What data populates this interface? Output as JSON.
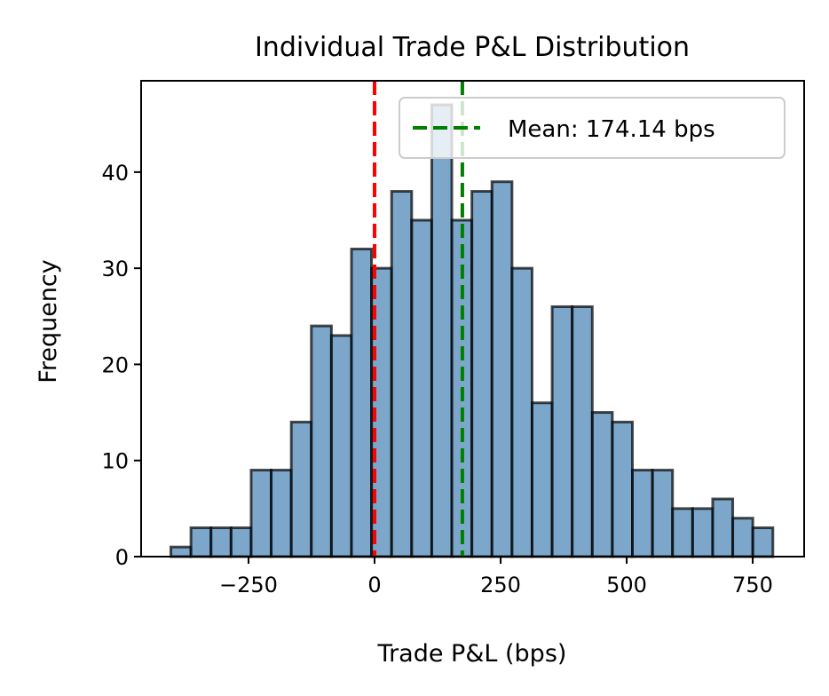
{
  "chart_data": {
    "type": "bar",
    "title": "Individual Trade P&L Distribution",
    "xlabel": "Trade P&L (bps)",
    "ylabel": "Frequency",
    "xlim": [
      -463,
      852
    ],
    "ylim": [
      0,
      49.5
    ],
    "x_ticks": [
      -250,
      0,
      250,
      500,
      750
    ],
    "x_tick_labels": [
      "−250",
      "0",
      "250",
      "500",
      "750"
    ],
    "y_ticks": [
      0,
      10,
      20,
      30,
      40
    ],
    "y_tick_labels": [
      "0",
      "10",
      "20",
      "30",
      "40"
    ],
    "bin_start": -404,
    "bin_width": 39.8,
    "values": [
      1,
      3,
      3,
      3,
      9,
      9,
      14,
      24,
      23,
      32,
      30,
      38,
      35,
      47,
      35,
      38,
      39,
      30,
      16,
      26,
      26,
      15,
      14,
      9,
      9,
      5,
      5,
      6,
      4,
      3
    ],
    "bar_color": "#4682b4",
    "bar_edge_color": "#000000",
    "grid": false,
    "reference_lines": [
      {
        "x": 0,
        "color": "#ff0000",
        "style": "dashed"
      },
      {
        "x": 174.14,
        "color": "#008000",
        "style": "dashed",
        "name": "Mean: 174.14 bps"
      }
    ],
    "legend": {
      "position": "top-right",
      "entries": [
        "Mean: 174.14 bps"
      ]
    }
  }
}
